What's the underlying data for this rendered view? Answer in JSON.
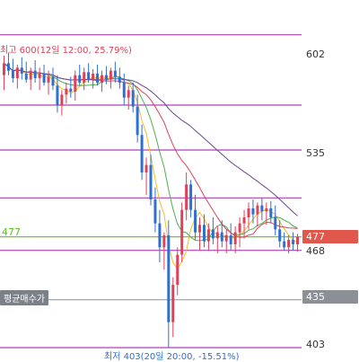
{
  "chart_data": {
    "type": "candlestick",
    "ylim": [
      400,
      625
    ],
    "high_annotation": "최고 600(12일 12:00, 25.79%)",
    "low_annotation": "최저 403(20일 20:00, -15.51%)",
    "avg_buy_label": "평균매수가",
    "avg_buy_price": 435,
    "current_price": 477,
    "axis_labels": [
      "602",
      "535",
      "468",
      "435",
      "403"
    ],
    "current_tag": "477",
    "avg_tag": "435",
    "green_label": "477",
    "horizontal_levels": [
      {
        "value": 612,
        "color": "#b040b8"
      },
      {
        "value": 565,
        "color": "#b040b8"
      },
      {
        "value": 535,
        "color": "#b040b8"
      },
      {
        "value": 503,
        "color": "#b040b8"
      },
      {
        "value": 477,
        "color": "#5cc020"
      },
      {
        "value": 468,
        "color": "#b040b8"
      },
      {
        "value": 435,
        "color": "#9aa0a6"
      },
      {
        "value": 403,
        "color": "#b040b8"
      }
    ],
    "candles": [
      {
        "o": 585,
        "h": 598,
        "l": 575,
        "c": 593
      },
      {
        "o": 593,
        "h": 600,
        "l": 585,
        "c": 588
      },
      {
        "o": 588,
        "h": 596,
        "l": 580,
        "c": 583
      },
      {
        "o": 583,
        "h": 592,
        "l": 576,
        "c": 590
      },
      {
        "o": 590,
        "h": 597,
        "l": 582,
        "c": 586
      },
      {
        "o": 586,
        "h": 594,
        "l": 580,
        "c": 582
      },
      {
        "o": 582,
        "h": 590,
        "l": 575,
        "c": 588
      },
      {
        "o": 588,
        "h": 595,
        "l": 580,
        "c": 583
      },
      {
        "o": 583,
        "h": 590,
        "l": 575,
        "c": 586
      },
      {
        "o": 586,
        "h": 592,
        "l": 578,
        "c": 580
      },
      {
        "o": 580,
        "h": 588,
        "l": 572,
        "c": 584
      },
      {
        "o": 584,
        "h": 590,
        "l": 575,
        "c": 578
      },
      {
        "o": 578,
        "h": 585,
        "l": 560,
        "c": 565
      },
      {
        "o": 565,
        "h": 575,
        "l": 558,
        "c": 572
      },
      {
        "o": 572,
        "h": 580,
        "l": 566,
        "c": 576
      },
      {
        "o": 576,
        "h": 584,
        "l": 570,
        "c": 574
      },
      {
        "o": 574,
        "h": 588,
        "l": 568,
        "c": 585
      },
      {
        "o": 585,
        "h": 592,
        "l": 578,
        "c": 580
      },
      {
        "o": 580,
        "h": 590,
        "l": 575,
        "c": 587
      },
      {
        "o": 587,
        "h": 593,
        "l": 580,
        "c": 582
      },
      {
        "o": 582,
        "h": 589,
        "l": 576,
        "c": 586
      },
      {
        "o": 586,
        "h": 592,
        "l": 578,
        "c": 580
      },
      {
        "o": 580,
        "h": 588,
        "l": 574,
        "c": 585
      },
      {
        "o": 585,
        "h": 591,
        "l": 579,
        "c": 582
      },
      {
        "o": 582,
        "h": 590,
        "l": 576,
        "c": 588
      },
      {
        "o": 588,
        "h": 594,
        "l": 580,
        "c": 584
      },
      {
        "o": 584,
        "h": 590,
        "l": 576,
        "c": 580
      },
      {
        "o": 580,
        "h": 586,
        "l": 565,
        "c": 570
      },
      {
        "o": 570,
        "h": 578,
        "l": 562,
        "c": 575
      },
      {
        "o": 575,
        "h": 580,
        "l": 560,
        "c": 564
      },
      {
        "o": 564,
        "h": 572,
        "l": 540,
        "c": 545
      },
      {
        "o": 545,
        "h": 552,
        "l": 515,
        "c": 520
      },
      {
        "o": 520,
        "h": 530,
        "l": 505,
        "c": 525
      },
      {
        "o": 525,
        "h": 532,
        "l": 498,
        "c": 502
      },
      {
        "o": 502,
        "h": 510,
        "l": 480,
        "c": 486
      },
      {
        "o": 486,
        "h": 495,
        "l": 460,
        "c": 470
      },
      {
        "o": 470,
        "h": 480,
        "l": 455,
        "c": 478
      },
      {
        "o": 478,
        "h": 488,
        "l": 403,
        "c": 420
      },
      {
        "o": 420,
        "h": 450,
        "l": 410,
        "c": 445
      },
      {
        "o": 445,
        "h": 470,
        "l": 438,
        "c": 465
      },
      {
        "o": 465,
        "h": 500,
        "l": 460,
        "c": 495
      },
      {
        "o": 495,
        "h": 520,
        "l": 488,
        "c": 512
      },
      {
        "o": 512,
        "h": 515,
        "l": 490,
        "c": 495
      },
      {
        "o": 495,
        "h": 505,
        "l": 475,
        "c": 480
      },
      {
        "o": 480,
        "h": 490,
        "l": 468,
        "c": 485
      },
      {
        "o": 485,
        "h": 492,
        "l": 470,
        "c": 474
      },
      {
        "o": 474,
        "h": 486,
        "l": 468,
        "c": 482
      },
      {
        "o": 482,
        "h": 490,
        "l": 472,
        "c": 476
      },
      {
        "o": 476,
        "h": 484,
        "l": 466,
        "c": 480
      },
      {
        "o": 480,
        "h": 488,
        "l": 470,
        "c": 474
      },
      {
        "o": 474,
        "h": 482,
        "l": 466,
        "c": 478
      },
      {
        "o": 478,
        "h": 486,
        "l": 468,
        "c": 472
      },
      {
        "o": 472,
        "h": 484,
        "l": 466,
        "c": 480
      },
      {
        "o": 480,
        "h": 490,
        "l": 470,
        "c": 486
      },
      {
        "o": 486,
        "h": 495,
        "l": 476,
        "c": 490
      },
      {
        "o": 490,
        "h": 500,
        "l": 482,
        "c": 496
      },
      {
        "o": 496,
        "h": 502,
        "l": 486,
        "c": 492
      },
      {
        "o": 492,
        "h": 500,
        "l": 484,
        "c": 498
      },
      {
        "o": 498,
        "h": 503,
        "l": 488,
        "c": 494
      },
      {
        "o": 494,
        "h": 500,
        "l": 485,
        "c": 496
      },
      {
        "o": 496,
        "h": 501,
        "l": 486,
        "c": 490
      },
      {
        "o": 490,
        "h": 498,
        "l": 478,
        "c": 482
      },
      {
        "o": 482,
        "h": 488,
        "l": 470,
        "c": 474
      },
      {
        "o": 474,
        "h": 480,
        "l": 468,
        "c": 470
      },
      {
        "o": 470,
        "h": 478,
        "l": 466,
        "c": 475
      },
      {
        "o": 475,
        "h": 480,
        "l": 468,
        "c": 472
      },
      {
        "o": 472,
        "h": 479,
        "l": 467,
        "c": 477
      }
    ]
  }
}
